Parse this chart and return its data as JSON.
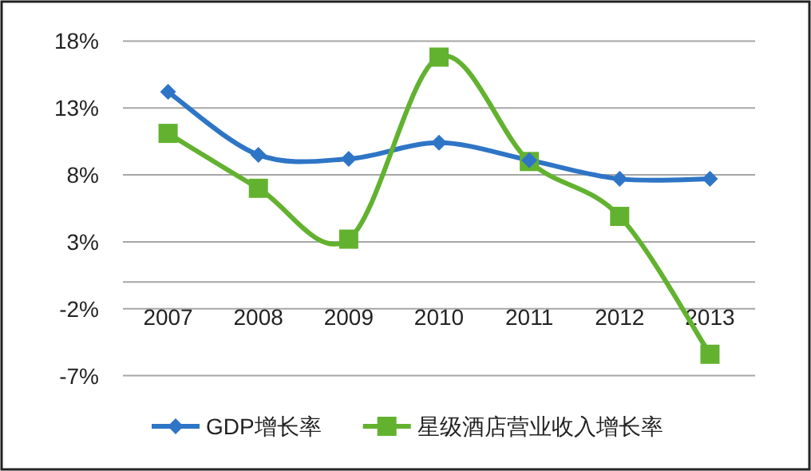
{
  "chart_data": {
    "type": "line",
    "categories": [
      "2007",
      "2008",
      "2009",
      "2010",
      "2011",
      "2012",
      "2013"
    ],
    "series": [
      {
        "name": "GDP增长率",
        "color": "#2e75c6",
        "marker": "diamond",
        "values": [
          14.2,
          9.5,
          9.2,
          10.4,
          9.1,
          7.7,
          7.7
        ]
      },
      {
        "name": "星级酒店营业收入增长率",
        "color": "#62b22f",
        "marker": "square",
        "values": [
          11.1,
          7.0,
          3.2,
          16.8,
          9.0,
          4.9,
          -5.4
        ]
      }
    ],
    "ylim": [
      -7,
      18
    ],
    "yticks": [
      {
        "value": 18,
        "label": "18%"
      },
      {
        "value": 13,
        "label": "13%"
      },
      {
        "value": 8,
        "label": "8%"
      },
      {
        "value": 3,
        "label": "3%"
      },
      {
        "value": -2,
        "label": "-2%"
      },
      {
        "value": -7,
        "label": "-7%"
      }
    ],
    "grid": "y",
    "legend": "bottom"
  }
}
